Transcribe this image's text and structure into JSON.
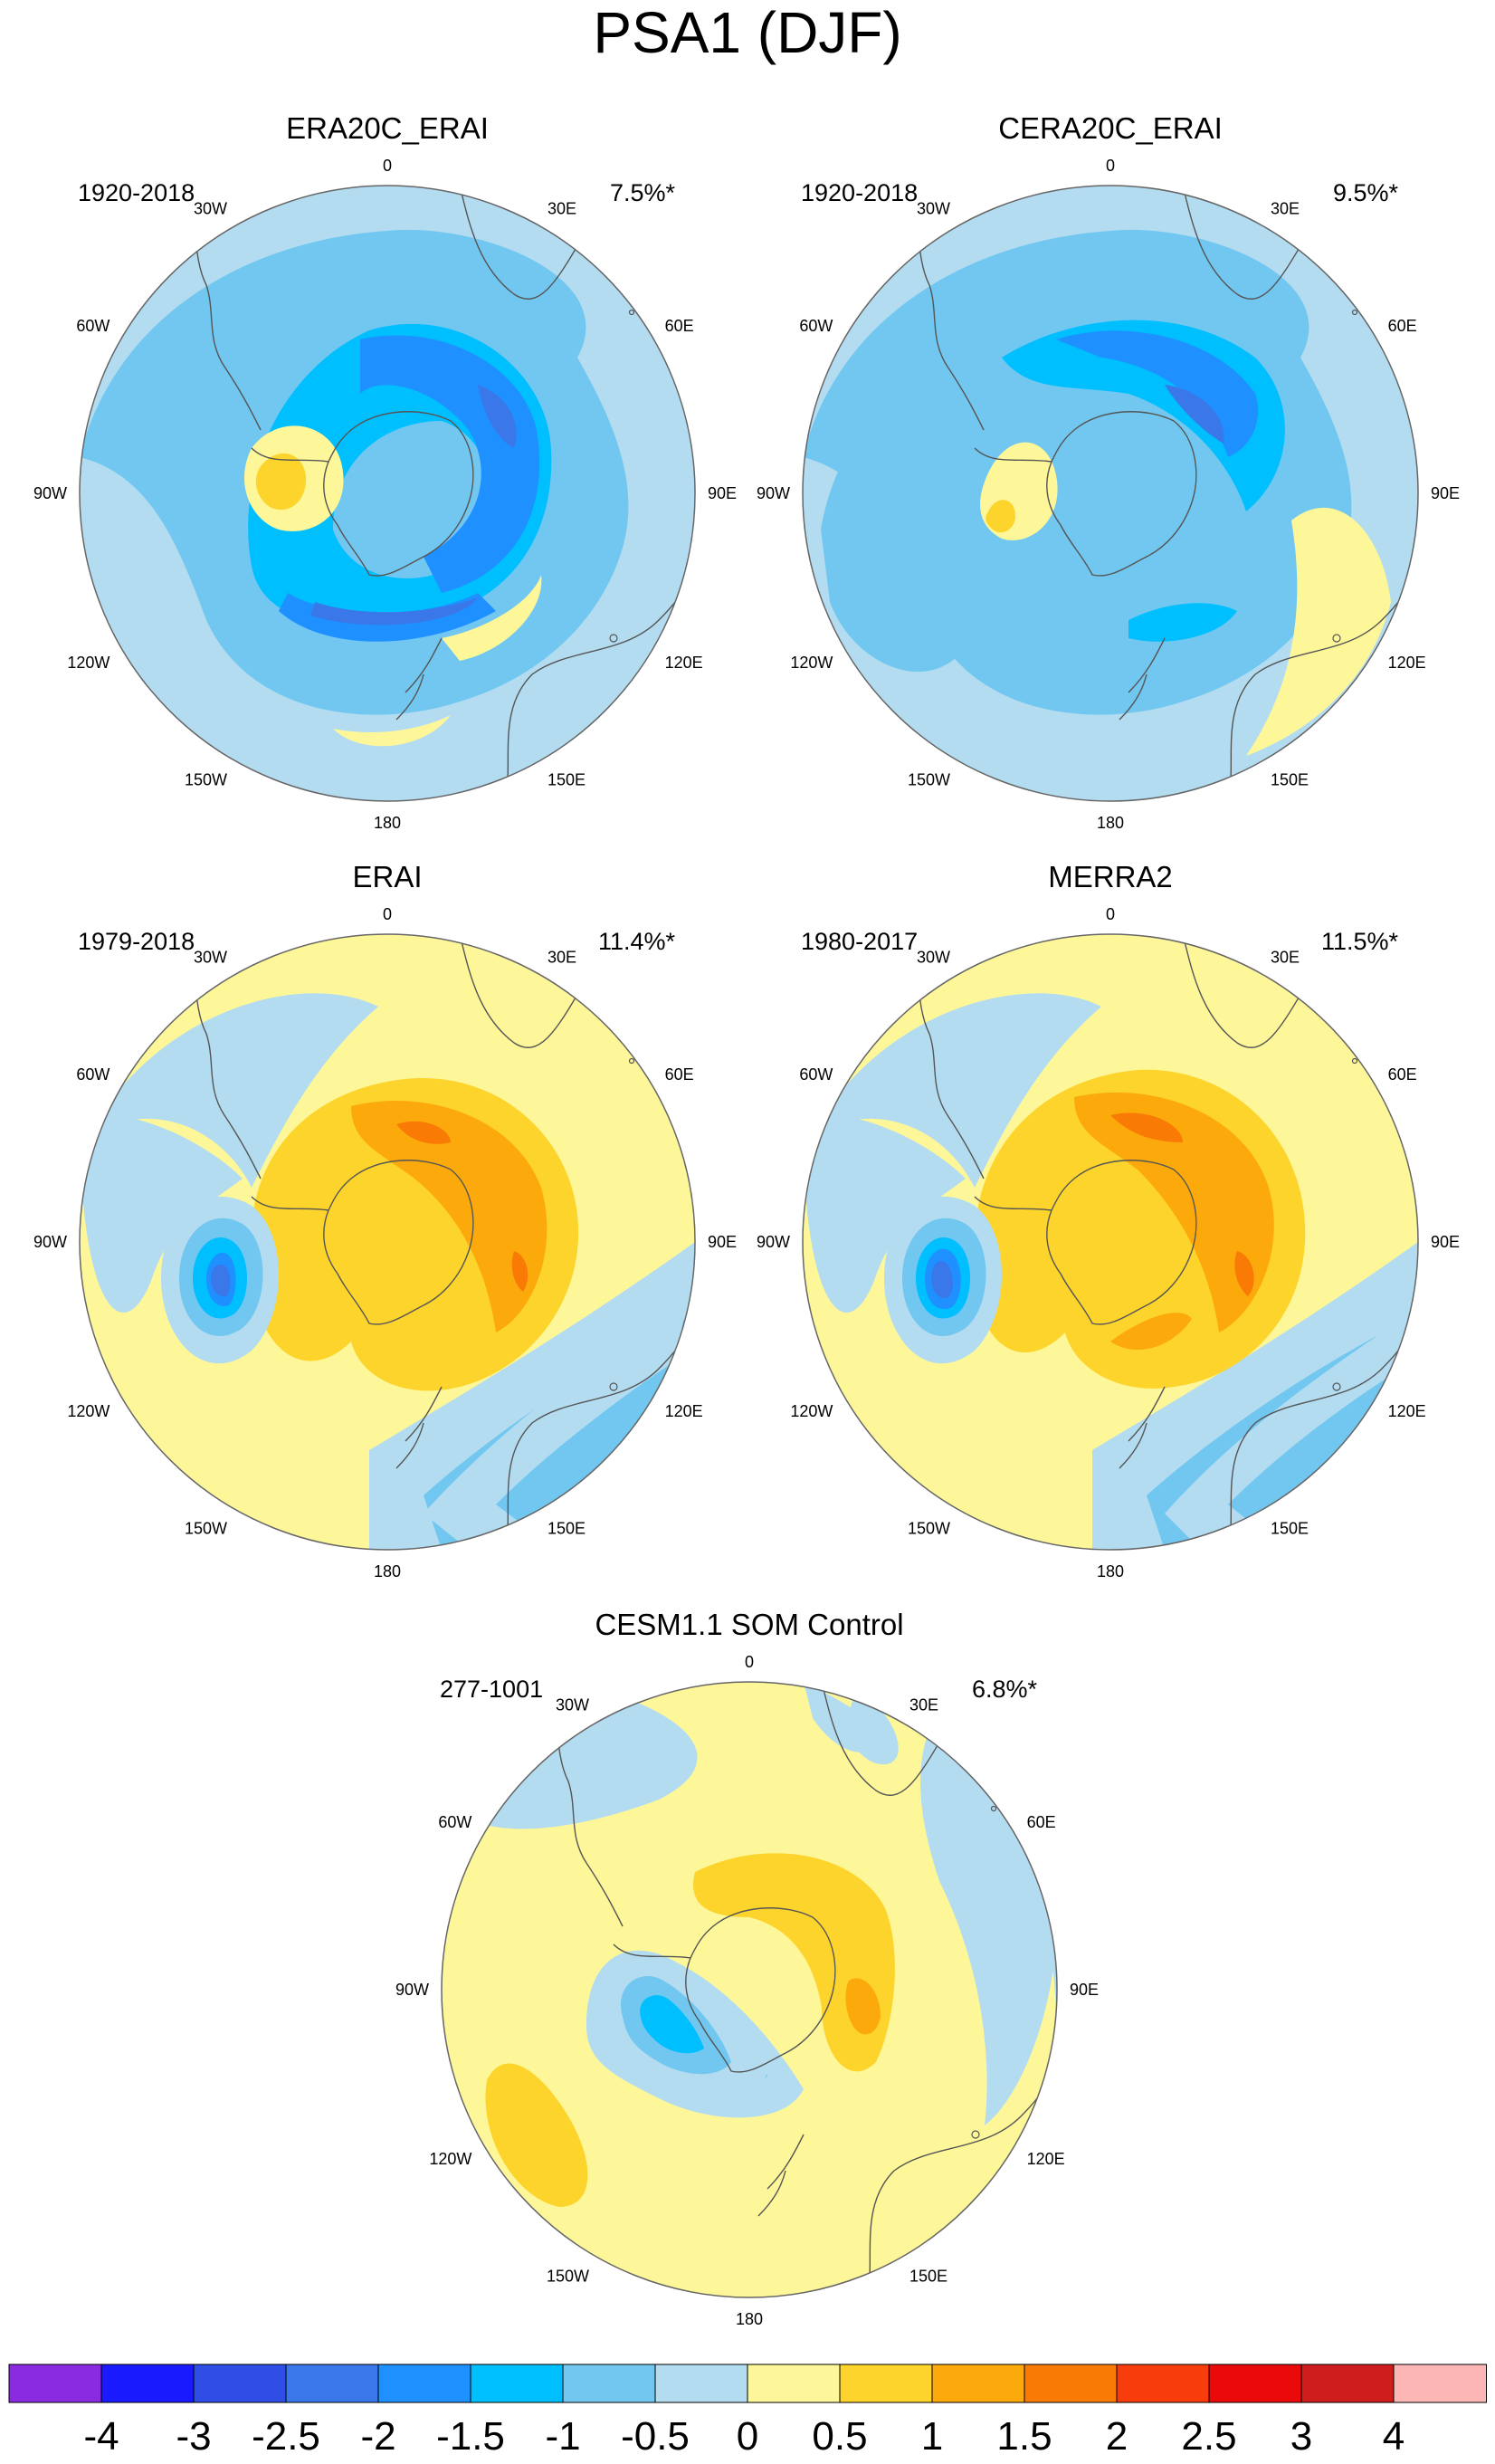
{
  "figure_title": "PSA1 (DJF)",
  "colors": {
    "coast": "#555555",
    "outline": "#666666"
  },
  "longitude_labels": [
    "0",
    "30E",
    "60E",
    "90E",
    "120E",
    "150E",
    "180",
    "150W",
    "120W",
    "90W",
    "60W",
    "30W"
  ],
  "panels": [
    {
      "id": "era20c",
      "title": "ERA20C_ERAI",
      "years": "1920-2018",
      "variance": "7.5%*",
      "pattern": "negative"
    },
    {
      "id": "cera20c",
      "title": "CERA20C_ERAI",
      "years": "1920-2018",
      "variance": "9.5%*",
      "pattern": "negative-alt"
    },
    {
      "id": "erai",
      "title": "ERAI",
      "years": "1979-2018",
      "variance": "11.4%*",
      "pattern": "positive"
    },
    {
      "id": "merra2",
      "title": "MERRA2",
      "years": "1980-2017",
      "variance": "11.5%*",
      "pattern": "positive-alt"
    },
    {
      "id": "cesm",
      "title": "CESM1.1 SOM Control",
      "years": "277-1001",
      "variance": "6.8%*",
      "pattern": "weak"
    }
  ],
  "colorbar": {
    "labels": [
      "-4",
      "-3",
      "-2.5",
      "-2",
      "-1.5",
      "-1",
      "-0.5",
      "0",
      "0.5",
      "1",
      "1.5",
      "2",
      "2.5",
      "3",
      "4"
    ],
    "colors": [
      "#8a2be2",
      "#1a1aff",
      "#2e4ee6",
      "#3a78ea",
      "#1e90ff",
      "#00bfff",
      "#71c7f0",
      "#b3dcf1",
      "#fdf79a",
      "#fdd42c",
      "#fcaa0b",
      "#f97b06",
      "#f93c0c",
      "#eb0a0a",
      "#cf1c1c",
      "#fcb6b6"
    ]
  }
}
